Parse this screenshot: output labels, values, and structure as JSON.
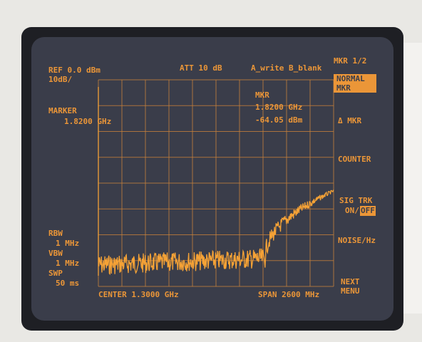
{
  "header": {
    "ref": "REF 0.0 dBm",
    "scale": "10dB/",
    "attenuation": "ATT 10 dB",
    "trace_mode": "A_write B_blank"
  },
  "marker": {
    "label": "MARKER",
    "frequency": "1.8200 GHz"
  },
  "marker_readout": {
    "label": "MKR",
    "frequency": "1.8200 GHz",
    "amplitude": "-64.05 dBm"
  },
  "softkeys": {
    "menu": "MKR 1/2",
    "items": [
      [
        "NORMAL",
        "MKR"
      ],
      [
        "Δ MKR"
      ],
      [
        "COUNTER"
      ],
      [
        "SIG TRK",
        "ON/",
        "OFF"
      ],
      [
        "NOISE/Hz"
      ],
      [
        "NEXT",
        "MENU"
      ]
    ]
  },
  "settings": [
    {
      "label": "RBW",
      "value": "1 MHz"
    },
    {
      "label": "VBW",
      "value": "1 MHz"
    },
    {
      "label": "SWP",
      "value": "50 ms"
    }
  ],
  "footer": {
    "center": "CENTER 1.3000 GHz",
    "span": "SPAN 2600 MHz"
  }
}
